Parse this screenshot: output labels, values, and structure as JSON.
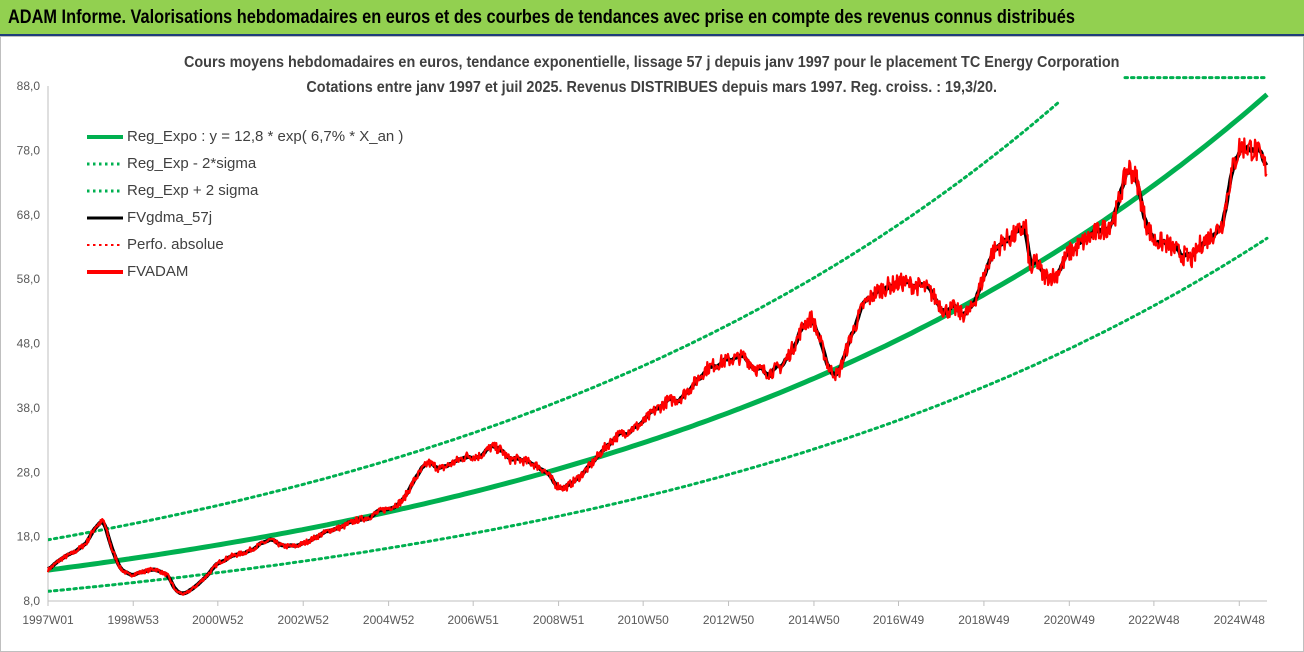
{
  "banner": {
    "title": "ADAM Informe. Valorisations hebdomadaires en euros et des courbes de tendances avec prise en compte des revenus connus distribués"
  },
  "chart_data": {
    "type": "line",
    "title": "Cours moyens hebdomadaires en euros, tendance exponentielle, lissage 57 j depuis janv 1997 pour le placement TC Energy Corporation",
    "subtitle": "Cotations entre janv 1997 et juil 2025. Revenus DISTRIBUES depuis mars 1997. Reg. croiss. : 19,3/20.",
    "xlabel": "",
    "ylabel": "",
    "ylim": [
      8.0,
      88.0
    ],
    "y_ticks": [
      "8,0",
      "18,0",
      "28,0",
      "38,0",
      "48,0",
      "58,0",
      "68,0",
      "78,0",
      "88,0"
    ],
    "x_ticks": [
      "1997W01",
      "1998W53",
      "2000W52",
      "2002W52",
      "2004W52",
      "2006W51",
      "2008W51",
      "2010W50",
      "2012W50",
      "2014W50",
      "2016W49",
      "2018W49",
      "2020W49",
      "2022W48",
      "2024W48"
    ],
    "x_range_years": [
      1997.0,
      2025.55
    ],
    "grid": false,
    "legend": "top-left",
    "series": [
      {
        "name": "Reg_Expo : y = 12,8 * exp( 6,7% *  X_an )",
        "role": "reg",
        "color": "#00b050",
        "style": "solid",
        "formula": {
          "a": 12.8,
          "rate": 0.067,
          "start_year": 1997.0
        }
      },
      {
        "name": "Reg_Exp - 2*sigma",
        "role": "reg_low",
        "color": "#00b050",
        "style": "dotted",
        "formula": {
          "a": 9.5,
          "rate": 0.067,
          "start_year": 1997.0
        }
      },
      {
        "name": "Reg_Exp + 2 sigma",
        "role": "reg_high",
        "color": "#00b050",
        "style": "dotted",
        "formula": {
          "a": 17.5,
          "rate": 0.067,
          "start_year": 1997.0,
          "cap": 89.3
        }
      },
      {
        "name": "FVgdma_57j",
        "role": "smooth",
        "color": "#000000",
        "style": "solid"
      },
      {
        "name": "Perfo. absolue",
        "role": "perfo",
        "color": "#ff0000",
        "style": "dotted"
      },
      {
        "name": "FVADAM",
        "role": "actual",
        "color": "#ff0000",
        "style": "solid",
        "x": [
          1997.0,
          1997.3,
          1997.6,
          1997.9,
          1998.1,
          1998.3,
          1998.5,
          1998.7,
          1998.9,
          1999.2,
          1999.5,
          1999.8,
          2000.0,
          2000.2,
          2000.5,
          2000.8,
          2001.0,
          2001.3,
          2001.6,
          2001.9,
          2002.2,
          2002.5,
          2002.8,
          2003.0,
          2003.3,
          2003.6,
          2003.9,
          2004.2,
          2004.5,
          2004.8,
          2005.0,
          2005.3,
          2005.6,
          2005.9,
          2006.2,
          2006.5,
          2006.8,
          2007.1,
          2007.4,
          2007.6,
          2007.8,
          2008.0,
          2008.3,
          2008.6,
          2008.9,
          2009.1,
          2009.4,
          2009.7,
          2010.0,
          2010.3,
          2010.6,
          2010.9,
          2011.2,
          2011.5,
          2011.8,
          2012.1,
          2012.4,
          2012.7,
          2013.0,
          2013.3,
          2013.6,
          2013.9,
          2014.2,
          2014.5,
          2014.7,
          2014.9,
          2015.1,
          2015.3,
          2015.5,
          2015.8,
          2016.1,
          2016.4,
          2016.7,
          2017.0,
          2017.3,
          2017.6,
          2017.9,
          2018.0,
          2018.2,
          2018.4,
          2018.6,
          2018.9,
          2019.1,
          2019.4,
          2019.7,
          2019.9,
          2020.0,
          2020.15,
          2020.3,
          2020.6,
          2020.9,
          2021.2,
          2021.5,
          2021.8,
          2022.0,
          2022.15,
          2022.3,
          2022.5,
          2022.7,
          2022.9,
          2023.2,
          2023.5,
          2023.8,
          2024.0,
          2024.2,
          2024.5,
          2024.7,
          2024.9,
          2025.1,
          2025.3,
          2025.55
        ],
        "y": [
          12.8,
          14.5,
          15.5,
          17.0,
          19.5,
          20.5,
          16.0,
          13.0,
          12.0,
          12.5,
          13.0,
          12.0,
          9.5,
          9.0,
          10.5,
          12.5,
          14.0,
          15.0,
          15.5,
          16.5,
          17.5,
          16.5,
          16.5,
          17.0,
          18.0,
          19.0,
          19.5,
          20.5,
          21.0,
          22.0,
          22.5,
          23.5,
          27.0,
          29.5,
          28.5,
          29.5,
          30.5,
          30.5,
          32.0,
          31.5,
          30.0,
          30.0,
          29.5,
          28.5,
          26.0,
          25.5,
          27.0,
          29.0,
          31.5,
          33.5,
          34.5,
          35.5,
          37.5,
          39.0,
          39.5,
          41.5,
          44.0,
          45.0,
          45.5,
          46.0,
          44.0,
          43.5,
          44.5,
          48.0,
          51.0,
          52.0,
          48.0,
          44.0,
          43.0,
          49.0,
          54.0,
          56.0,
          57.0,
          57.5,
          57.0,
          56.5,
          54.0,
          53.0,
          53.5,
          52.5,
          53.0,
          58.0,
          62.0,
          64.0,
          65.0,
          66.5,
          59.0,
          61.0,
          58.5,
          58.5,
          62.0,
          63.5,
          65.0,
          66.0,
          68.0,
          72.0,
          75.5,
          73.5,
          67.0,
          64.0,
          63.5,
          62.0,
          61.0,
          63.5,
          64.5,
          66.5,
          74.0,
          78.5,
          78.5,
          78.0,
          75.0
        ]
      }
    ]
  }
}
